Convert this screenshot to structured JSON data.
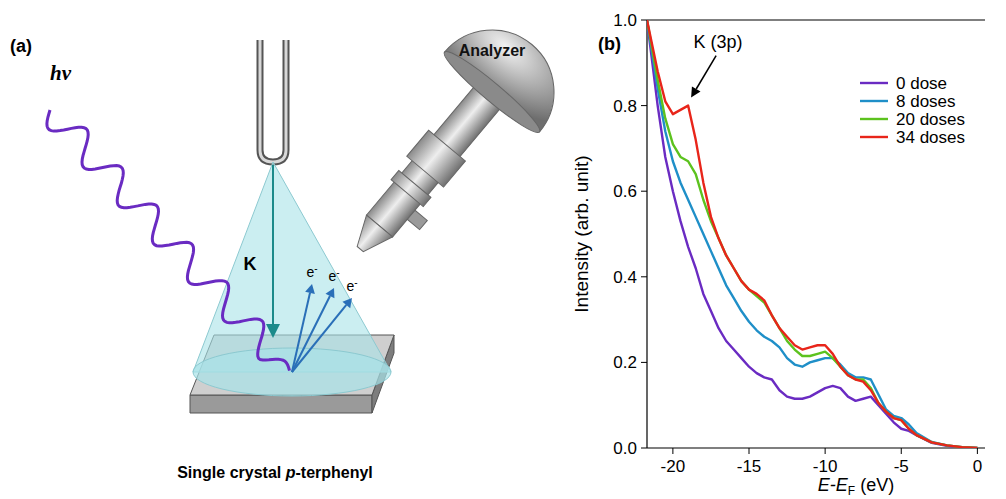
{
  "diagram": {
    "panel_label": "(a)",
    "photon_label": "hν",
    "analyzer_label": "Analyzer",
    "beam_label": "K",
    "electron_labels": [
      "e-",
      "e-",
      "e-"
    ],
    "sample_label": {
      "prefix": "Single crystal ",
      "italic": "p",
      "suffix": "-terphenyl"
    }
  },
  "chart_data": {
    "type": "line",
    "panel_label": "(b)",
    "x_label": {
      "main": "E-E",
      "sub": "F",
      "tail": " (eV)"
    },
    "y_label": "Intensity (arb. unit)",
    "xlim": [
      -21.7,
      0.5
    ],
    "xticks": [
      -20,
      -15,
      -10,
      -5,
      0
    ],
    "ylim": [
      0,
      1
    ],
    "yticks": [
      {
        "value": 0,
        "label": "0.0"
      },
      0.2,
      0.4,
      0.6,
      0.8,
      {
        "value": 1,
        "label": "1.0"
      }
    ],
    "grid": false,
    "legend": "upper right",
    "annotations": [
      {
        "text": "K (3p)",
        "x": -19,
        "y": 0.8
      }
    ],
    "x": [
      -21.7,
      -21,
      -20.5,
      -20,
      -19.5,
      -19,
      -18.5,
      -18,
      -17.5,
      -17,
      -16.5,
      -16,
      -15.5,
      -15,
      -14.5,
      -14,
      -13.5,
      -13,
      -12.5,
      -12,
      -11.5,
      -11,
      -10.5,
      -10,
      -9.5,
      -9,
      -8.5,
      -8,
      -7.5,
      -7,
      -6.5,
      -6,
      -5.5,
      -5,
      -4.5,
      -4,
      -3,
      -2,
      -1,
      0
    ],
    "series": [
      {
        "name": "0 dose",
        "color": "#6a2bc2",
        "values": [
          1.0,
          0.8,
          0.68,
          0.6,
          0.53,
          0.47,
          0.42,
          0.36,
          0.32,
          0.28,
          0.25,
          0.23,
          0.21,
          0.19,
          0.175,
          0.165,
          0.16,
          0.135,
          0.12,
          0.115,
          0.115,
          0.12,
          0.13,
          0.14,
          0.145,
          0.14,
          0.12,
          0.11,
          0.115,
          0.12,
          0.1,
          0.08,
          0.06,
          0.045,
          0.04,
          0.03,
          0.012,
          0.005,
          0.001,
          0
        ]
      },
      {
        "name": "8 doses",
        "color": "#1f8fc8",
        "values": [
          1.0,
          0.84,
          0.74,
          0.67,
          0.62,
          0.58,
          0.54,
          0.5,
          0.46,
          0.42,
          0.38,
          0.35,
          0.32,
          0.295,
          0.275,
          0.26,
          0.25,
          0.235,
          0.21,
          0.195,
          0.19,
          0.2,
          0.205,
          0.21,
          0.21,
          0.195,
          0.175,
          0.165,
          0.165,
          0.16,
          0.125,
          0.09,
          0.075,
          0.07,
          0.055,
          0.035,
          0.014,
          0.006,
          0.002,
          0
        ]
      },
      {
        "name": "20 doses",
        "color": "#5cc21e",
        "values": [
          1.0,
          0.86,
          0.77,
          0.71,
          0.68,
          0.67,
          0.64,
          0.58,
          0.53,
          0.49,
          0.45,
          0.42,
          0.39,
          0.37,
          0.355,
          0.34,
          0.31,
          0.28,
          0.25,
          0.23,
          0.215,
          0.215,
          0.22,
          0.225,
          0.21,
          0.19,
          0.17,
          0.16,
          0.16,
          0.14,
          0.105,
          0.085,
          0.07,
          0.065,
          0.045,
          0.03,
          0.013,
          0.006,
          0.002,
          0
        ]
      },
      {
        "name": "34 doses",
        "color": "#e8251a",
        "values": [
          1.0,
          0.88,
          0.81,
          0.78,
          0.79,
          0.8,
          0.72,
          0.62,
          0.54,
          0.49,
          0.45,
          0.42,
          0.39,
          0.37,
          0.36,
          0.345,
          0.31,
          0.28,
          0.26,
          0.24,
          0.23,
          0.235,
          0.24,
          0.24,
          0.22,
          0.19,
          0.17,
          0.16,
          0.155,
          0.135,
          0.105,
          0.085,
          0.07,
          0.065,
          0.045,
          0.03,
          0.013,
          0.006,
          0.002,
          0
        ]
      }
    ]
  }
}
